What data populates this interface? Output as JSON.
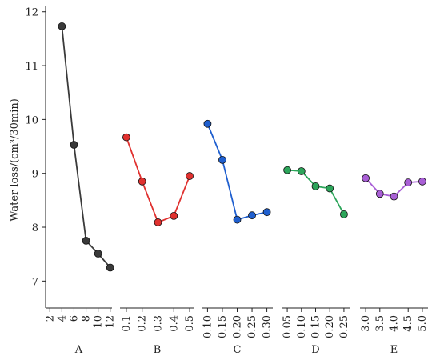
{
  "chart_data": [
    {
      "type": "line",
      "xlabel": "A",
      "ylabel": "Water loss/(cm³/30min)",
      "color": "#3a3a3a",
      "x": [
        4,
        6,
        8,
        10,
        12
      ],
      "values": [
        11.73,
        9.53,
        7.75,
        7.51,
        7.25
      ],
      "xlim": [
        1.3,
        12.3
      ],
      "xticks": [
        2,
        4,
        6,
        8,
        10,
        12
      ],
      "ylim": [
        6.5,
        12.1
      ],
      "yticks": [
        7,
        8,
        9,
        10,
        11,
        12
      ]
    },
    {
      "type": "line",
      "xlabel": "B",
      "color": "#e0312f",
      "x": [
        0.1,
        0.2,
        0.3,
        0.4,
        0.5
      ],
      "values": [
        9.67,
        8.85,
        8.09,
        8.21,
        8.95
      ],
      "xlim": [
        0.06,
        0.53
      ],
      "xticks": [
        0.1,
        0.2,
        0.3,
        0.4,
        0.5
      ],
      "ylim": [
        6.5,
        12.1
      ]
    },
    {
      "type": "line",
      "xlabel": "C",
      "color": "#1f5fcf",
      "x": [
        0.1,
        0.15,
        0.2,
        0.25,
        0.3
      ],
      "values": [
        9.92,
        9.25,
        8.14,
        8.22,
        8.28
      ],
      "xlim": [
        0.08,
        0.32
      ],
      "xticks": [
        {
          "value": 0.1,
          "label": "0.10"
        },
        0.15,
        {
          "value": 0.2,
          "label": "0.20"
        },
        0.25,
        {
          "value": 0.3,
          "label": "0.30"
        }
      ],
      "ylim": [
        6.5,
        12.1
      ]
    },
    {
      "type": "line",
      "xlabel": "D",
      "color": "#2ca55a",
      "x": [
        0.05,
        0.1,
        0.15,
        0.2,
        0.25
      ],
      "values": [
        9.06,
        9.04,
        8.76,
        8.72,
        8.24
      ],
      "xlim": [
        0.03,
        0.27
      ],
      "xticks": [
        0.05,
        {
          "value": 0.1,
          "label": "0.10"
        },
        0.15,
        {
          "value": 0.2,
          "label": "0.20"
        },
        0.25
      ],
      "ylim": [
        6.5,
        12.1
      ]
    },
    {
      "type": "line",
      "xlabel": "E",
      "color": "#a95fd6",
      "x": [
        3.0,
        3.5,
        4.0,
        4.5,
        5.0
      ],
      "values": [
        8.91,
        8.62,
        8.57,
        8.83,
        8.85
      ],
      "xlim": [
        2.8,
        5.2
      ],
      "xticks": [
        {
          "value": 3,
          "label": "3.0"
        },
        3.5,
        {
          "value": 4,
          "label": "4.0"
        },
        4.5,
        {
          "value": 5,
          "label": "5.0"
        }
      ],
      "ylim": [
        6.5,
        12.1
      ]
    }
  ]
}
